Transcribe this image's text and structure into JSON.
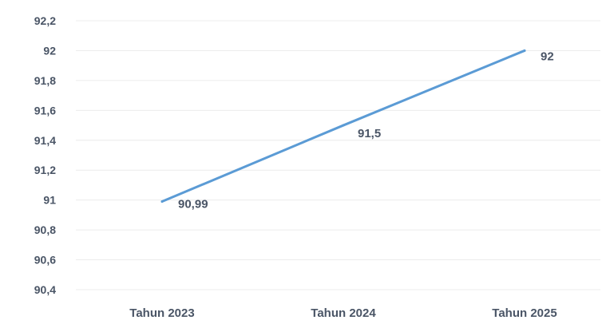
{
  "chart_data": {
    "type": "line",
    "title": "",
    "xlabel": "",
    "ylabel": "",
    "categories": [
      "Tahun 2023",
      "Tahun 2024",
      "Tahun 2025"
    ],
    "series": [
      {
        "values": [
          90.99,
          91.5,
          92
        ],
        "color": "#5b9bd5"
      }
    ],
    "data_labels": [
      "90,99",
      "91,5",
      "92"
    ],
    "y_ticks": [
      {
        "value": 92.2,
        "label": "92,2"
      },
      {
        "value": 92.0,
        "label": "92"
      },
      {
        "value": 91.8,
        "label": "91,8"
      },
      {
        "value": 91.6,
        "label": "91,6"
      },
      {
        "value": 91.4,
        "label": "91,4"
      },
      {
        "value": 91.2,
        "label": "91,2"
      },
      {
        "value": 91.0,
        "label": "91"
      },
      {
        "value": 90.8,
        "label": "90,8"
      },
      {
        "value": 90.6,
        "label": "90,6"
      },
      {
        "value": 90.4,
        "label": "90,4"
      }
    ],
    "ylim": [
      90.4,
      92.2
    ],
    "grid": true,
    "legend": "none"
  }
}
